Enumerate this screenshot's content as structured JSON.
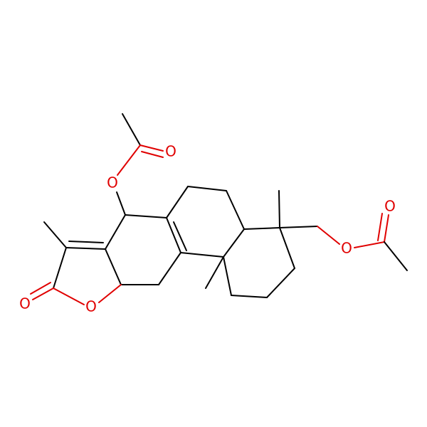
{
  "nodes": [
    {
      "label": "O"
    },
    {
      "label": "O"
    },
    {
      "label": "O"
    },
    {
      "label": "O"
    },
    {
      "label": "O"
    },
    {
      "label": "O"
    }
  ]
}
